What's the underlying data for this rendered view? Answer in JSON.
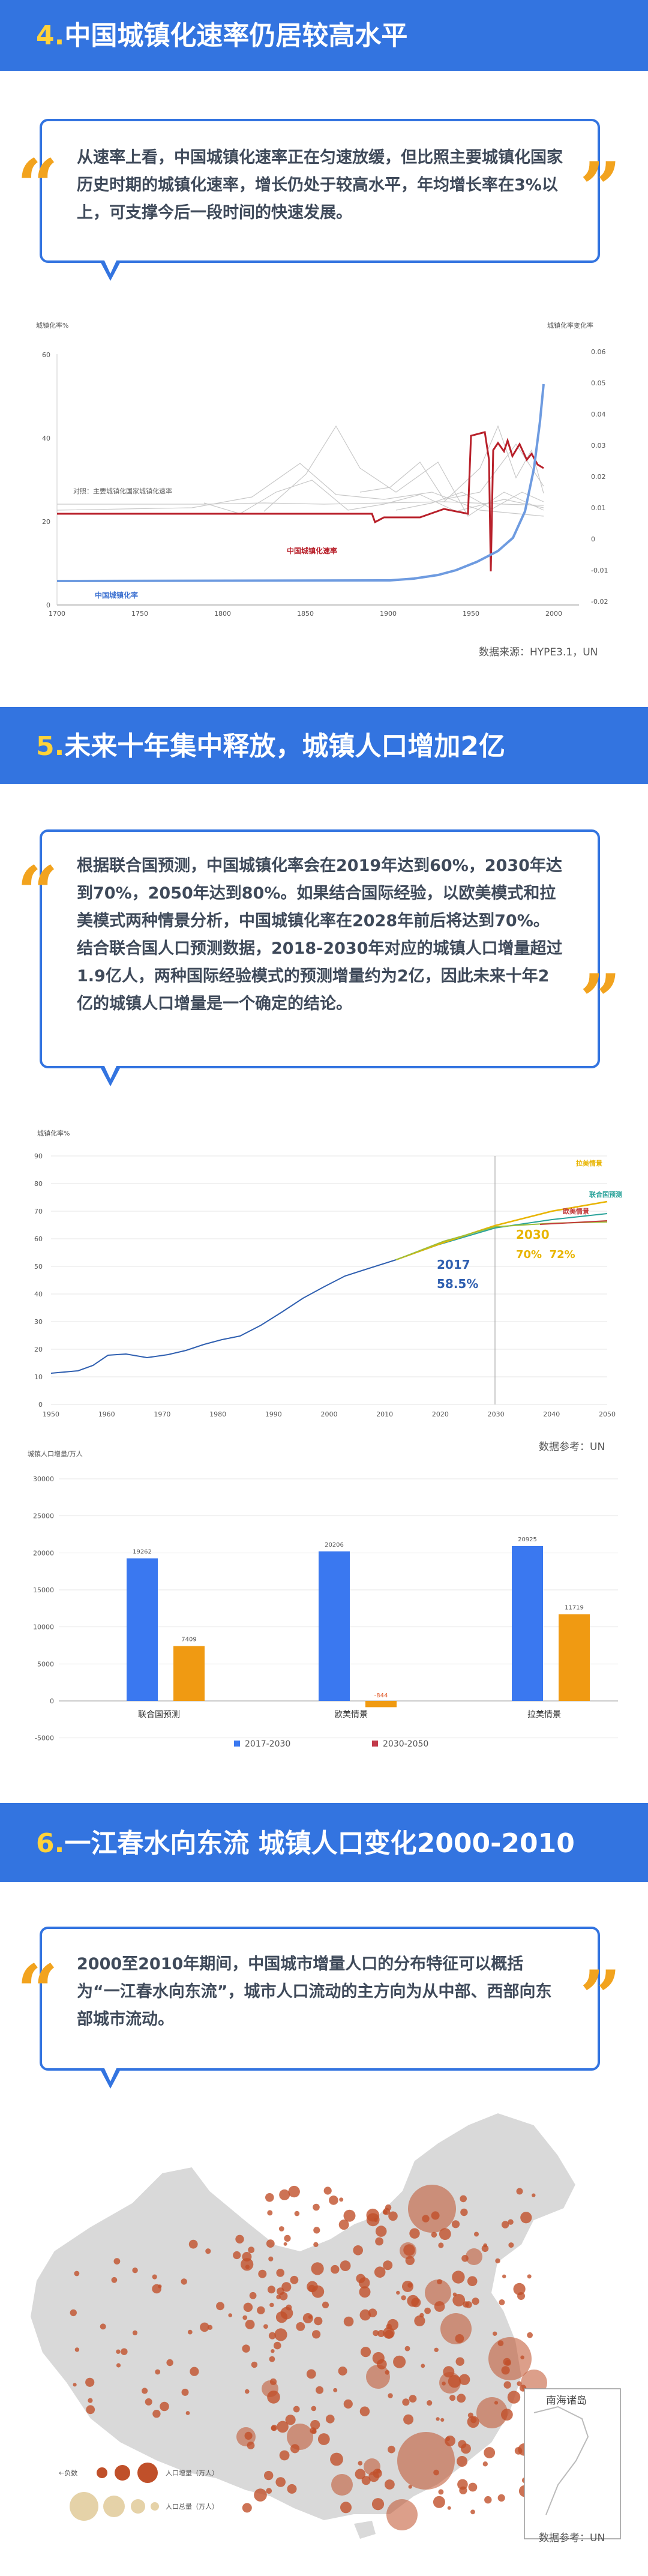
{
  "section4": {
    "num": "4.",
    "title": "中国城镇化速率仍居较高水平",
    "quote": "从速率上看，中国城镇化速率正在匀速放缓，但比照主要城镇化国家历史时期的城镇化速率，增长仍处于较高水平，年均增长率在3%以上，可支撑今后一段时间的快速发展。",
    "source": "数据来源：HYPE3.1，UN"
  },
  "chart1": {
    "type": "line",
    "ylabel_left": "城镇化率%",
    "ylabel_right": "城镇化率变化率",
    "x_ticks": [
      "1700",
      "1750",
      "1800",
      "1850",
      "1900",
      "1950",
      "2000"
    ],
    "y_left_ticks": [
      "0",
      "20",
      "40",
      "60"
    ],
    "y_right_ticks": [
      "0.06",
      "0.05",
      "0.04",
      "0.03",
      "0.02",
      "0.01",
      "0",
      "-0.01",
      "-0.02"
    ],
    "label_compare": "对照：主要城镇化国家城镇化速率",
    "label_rate": "中国城镇化速率",
    "label_rate_cn": "中国城镇化率",
    "colors": {
      "rate": "#b8202a",
      "level": "#6e9be0",
      "compare": "#c8c8c8"
    }
  },
  "section5": {
    "num": "5.",
    "title": "未来十年集中释放，城镇人口增加2亿",
    "quote": "根据联合国预测，中国城镇化率会在2019年达到60%，2030年达到70%，2050年达到80%。如果结合国际经验，以欧美模式和拉美模式两种情景分析，中国城镇化率在2028年前后将达到70%。结合联合国人口预测数据，2018-2030年对应的城镇人口增量超过1.9亿人，两种国际经验模式的预测增量约为2亿，因此未来十年2亿的城镇人口增量是一个确定的结论。",
    "source": "数据参考：UN"
  },
  "chart2": {
    "type": "line",
    "ylabel": "城镇化率%",
    "x_ticks": [
      "1950",
      "1960",
      "1970",
      "1980",
      "1990",
      "2000",
      "2010",
      "2020",
      "2030",
      "2040",
      "2050"
    ],
    "y_ticks": [
      "0",
      "10",
      "20",
      "30",
      "40",
      "50",
      "60",
      "70",
      "80",
      "90"
    ],
    "legend": [
      "拉美情景",
      "联合国预测",
      "欧美情景"
    ],
    "ann_2017_year": "2017",
    "ann_2017_val": "58.5%",
    "ann_2030_year": "2030",
    "ann_2030_val": "70%  72%",
    "colors": {
      "history": "#2f5fb0",
      "lat": "#e8b400",
      "un": "#2aa39a",
      "euus": "#c23a3a",
      "ann2030": "#e8b400"
    }
  },
  "chart3": {
    "type": "bar",
    "ylabel": "城镇人口增量/万人",
    "y_ticks": [
      "-5000",
      "0",
      "5000",
      "10000",
      "15000",
      "20000",
      "25000",
      "30000"
    ],
    "categories": [
      "联合国预测",
      "欧美情景",
      "拉美情景"
    ],
    "series": [
      {
        "name": "2017-2030",
        "values": [
          19262,
          20206,
          20925
        ],
        "labels": [
          "19262",
          "20206",
          "20925"
        ]
      },
      {
        "name": "2030-2050",
        "values": [
          7409,
          -844,
          11719
        ],
        "labels": [
          "7409",
          "-844",
          "11719"
        ]
      }
    ],
    "colors": {
      "s1": "#3a78f0",
      "s2": "#f09a12",
      "legend2": "#c23a4a"
    },
    "ylim": [
      -5000,
      30000
    ]
  },
  "section6": {
    "num": "6.",
    "title": "一江春水向东流 城镇人口变化2000-2010",
    "quote": "2000至2010年期间，中国城市增量人口的分布特征可以概括为“一江春水向东流”，城市人口流动的主方向为从中部、西部向东部城市流动。",
    "map_inset_label": "南海诸岛",
    "legend_left": "←负数",
    "legend_increase": "人口增量（万人）",
    "legend_total": "人口总量（万人）",
    "source": "数据参考：UN",
    "colors": {
      "bubble": "#c0502a",
      "land": "#d8d8d8"
    }
  }
}
